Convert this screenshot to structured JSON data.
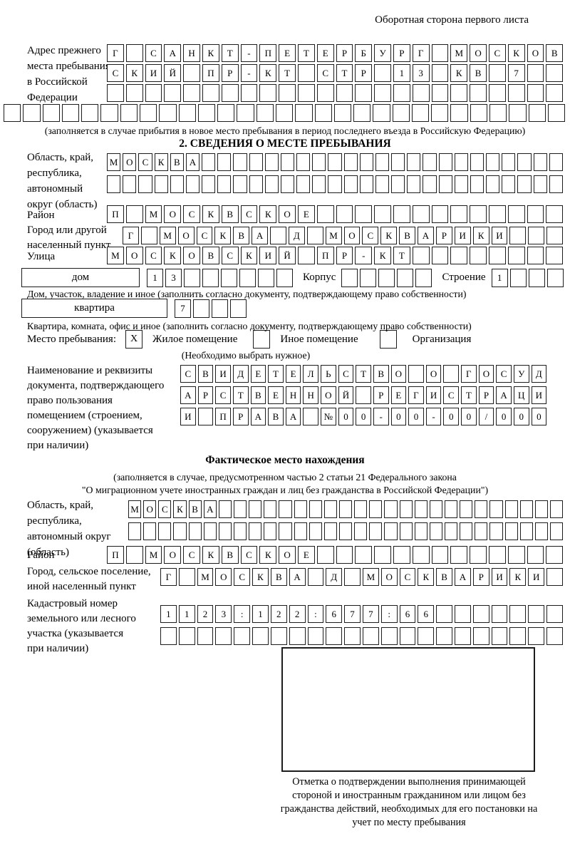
{
  "page": {
    "header_note": "Оборотная сторона первого листа"
  },
  "prev": {
    "label": "Адрес прежнего\nместа пребывания\nв Российской\nФедерации",
    "rows": [
      {
        "chars": "Г САНКТ-ПЕТЕРБУРГ МОСКОВ",
        "len": 24
      },
      {
        "chars": "СКИЙ ПР-КТ СТР 13 КВ 7",
        "len": 24
      },
      {
        "chars": "",
        "len": 24
      },
      {
        "chars": "",
        "len": 29
      }
    ],
    "note": "(заполняется в случае прибытия в новое место пребывания в период последнего въезда в Российскую Федерацию)"
  },
  "s2": {
    "title": "2. СВЕДЕНИЯ О МЕСТЕ ПРЕБЫВАНИЯ",
    "region": {
      "label": "Область, край,\nреспублика,\nавтономный\nокруг (область)",
      "rows": [
        {
          "chars": "МОСКВА",
          "len": 29
        },
        {
          "chars": "",
          "len": 29
        }
      ]
    },
    "district": {
      "label": "Район",
      "row": {
        "chars": "П МОСКВСКОЕ",
        "len": 24
      }
    },
    "city": {
      "label": "Город или другой\nнаселенный пункт",
      "row": {
        "chars": "Г МОСКВА Д МОСКВАРИКИ",
        "len": 24
      }
    },
    "street": {
      "label": "Улица",
      "row": {
        "chars": "МОСКОВСКИЙ ПР-КТ",
        "len": 24
      }
    },
    "house": {
      "box_label": "дом",
      "num": {
        "chars": "13",
        "len": 8
      },
      "korpus_label": "Корпус",
      "korpus": {
        "chars": "",
        "len": 5
      },
      "stroenie_label": "Строение",
      "stroenie": {
        "chars": "1",
        "len": 4
      },
      "note": "Дом, участок, владение и иное (заполнить согласно документу, подтверждающему право собственности)"
    },
    "apartment": {
      "box_label": "квартира",
      "num": {
        "chars": "7",
        "len": 4
      },
      "note": "Квартира, комната, офис и иное (заполнить согласно документу, подтверждающему право собственности)"
    },
    "stay": {
      "label": "Место пребывания:",
      "options": [
        {
          "label": "Жилое помещение",
          "mark": "X"
        },
        {
          "label": "Иное помещение",
          "mark": ""
        },
        {
          "label": "Организация",
          "mark": ""
        }
      ],
      "note": "(Необходимо выбрать нужное)"
    },
    "doc": {
      "label": "Наименование и реквизиты\nдокумента, подтверждающего\nправо пользования\nпомещением (строением,\nсооружением) (указывается\nпри наличии)",
      "rows": [
        {
          "chars": "СВИДЕТЕЛЬСТВО О ГОСУД",
          "len": 21
        },
        {
          "chars": "АРСТВЕННОЙ РЕГИСТРАЦИ",
          "len": 21
        },
        {
          "chars": "И ПРАВА №00-00-00/000",
          "len": 21
        }
      ]
    }
  },
  "fact": {
    "title": "Фактическое место нахождения",
    "note1": "(заполняется в случае, предусмотренном частью 2 статьи 21 Федерального закона",
    "note2": "\"О миграционном учете иностранных граждан и лиц без гражданства в Российской Федерации\")",
    "region": {
      "label": "Область, край,\nреспублика,\nавтономный округ\n(область)",
      "rows": [
        {
          "chars": "МОСКВА",
          "len": 29
        },
        {
          "chars": "",
          "len": 29
        }
      ]
    },
    "district": {
      "label": "Район",
      "row": {
        "chars": "П МОСКВСКОЕ",
        "len": 24
      }
    },
    "city": {
      "label": "Город, сельское поселение,\nиной населенный пункт",
      "row": {
        "chars": "Г МОСКВА Д МОСКВАРИКИ",
        "len": 22
      }
    },
    "cadastre": {
      "label": "Кадастровый номер\nземельного или лесного\nучастка (указывается\nпри наличии)",
      "rows": [
        {
          "chars": "1123:122:677:66",
          "len": 22
        },
        {
          "chars": "",
          "len": 22
        }
      ]
    }
  },
  "stamp": {
    "caption": "Отметка о подтверждении выполнения принимающей стороной и иностранным гражданином или лицом без гражданства действий, необходимых для его постановки на учет по месту пребывания"
  }
}
